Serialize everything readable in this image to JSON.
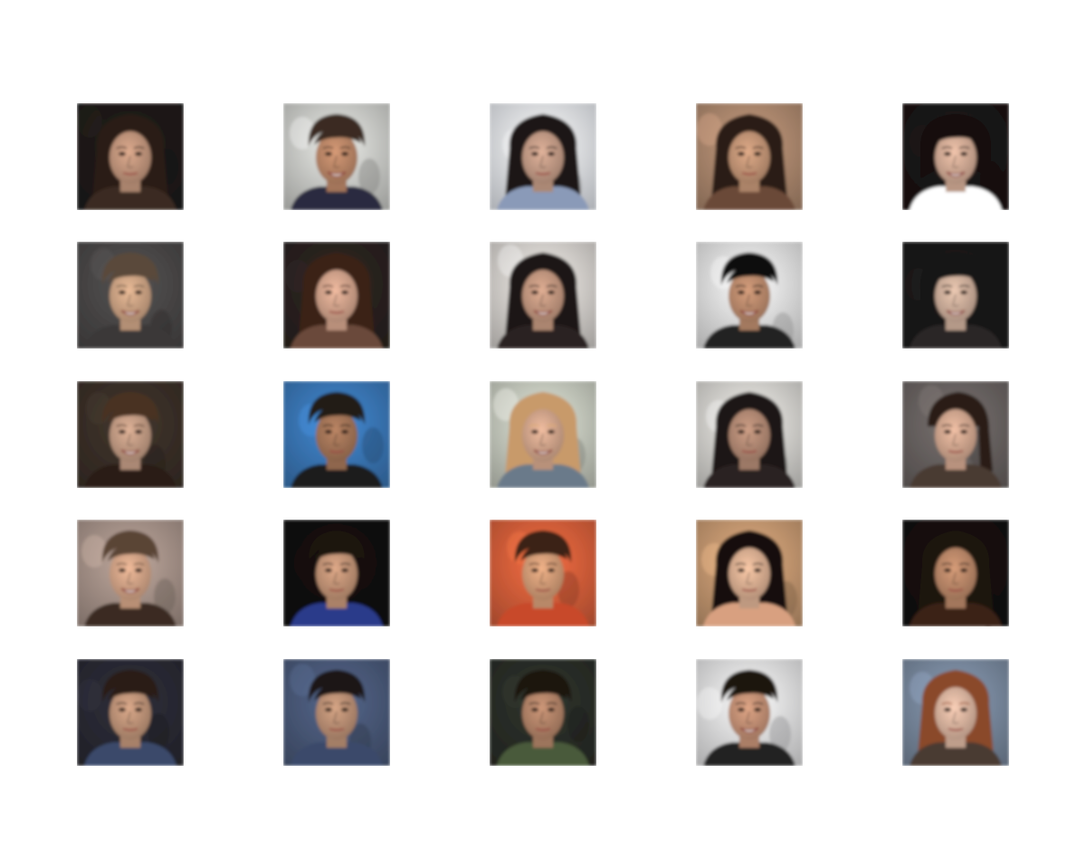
{
  "grid": {
    "rows": 5,
    "cols": 5,
    "tiles": [
      {
        "bg": "#1e1a18",
        "hair": "#2a1a12",
        "skin": "#c79a80",
        "shirt": "#3a2a22",
        "hairStyle": "long",
        "smile": false
      },
      {
        "bg": "#cfd0cc",
        "hair": "#3b2a20",
        "skin": "#c08a6a",
        "shirt": "#2a2a40",
        "hairStyle": "short",
        "smile": true
      },
      {
        "bg": "#e8ecf2",
        "hair": "#1c1512",
        "skin": "#c9a08a",
        "shirt": "#8a9ab8",
        "hairStyle": "long",
        "smile": false
      },
      {
        "bg": "#b08a70",
        "hair": "#2a1a12",
        "skin": "#c99a7a",
        "shirt": "#6a4a38",
        "hairStyle": "long",
        "smile": false
      },
      {
        "bg": "#1a1414",
        "hair": "#120c0c",
        "skin": "#d8b09a",
        "shirt": "#ffffff",
        "hairStyle": "bob",
        "smile": true
      },
      {
        "bg": "#4a4848",
        "hair": "#5a4a3a",
        "skin": "#d2a888",
        "shirt": "#3a3838",
        "hairStyle": "short",
        "smile": true
      },
      {
        "bg": "#2a2220",
        "hair": "#3a2218",
        "skin": "#d8a890",
        "shirt": "#6a4a3a",
        "hairStyle": "long",
        "smile": false
      },
      {
        "bg": "#d8d4d0",
        "hair": "#1a1412",
        "skin": "#c99c84",
        "shirt": "#2a2220",
        "hairStyle": "long",
        "smile": true
      },
      {
        "bg": "#e6e6e6",
        "hair": "#0e0a0a",
        "skin": "#c08e70",
        "shirt": "#222222",
        "hairStyle": "short",
        "smile": true
      },
      {
        "bg": "#1a1818",
        "hair": "#151212",
        "skin": "#d4b4a0",
        "shirt": "#2a2626",
        "hairStyle": "bob",
        "smile": true
      },
      {
        "bg": "#3a3028",
        "hair": "#4a3224",
        "skin": "#c8a088",
        "shirt": "#2a1a18",
        "hairStyle": "short",
        "smile": true
      },
      {
        "bg": "#3a78b8",
        "hair": "#221a14",
        "skin": "#a8785a",
        "shirt": "#1a1a1a",
        "hairStyle": "short",
        "smile": false
      },
      {
        "bg": "#c8ccc0",
        "hair": "#c89a6a",
        "skin": "#d8aa90",
        "shirt": "#6a7a8a",
        "hairStyle": "long",
        "smile": true
      },
      {
        "bg": "#d8d6d2",
        "hair": "#1a1412",
        "skin": "#b88e78",
        "shirt": "#2a2220",
        "hairStyle": "long",
        "smile": false
      },
      {
        "bg": "#6a6462",
        "hair": "#2a1e18",
        "skin": "#d8ac94",
        "shirt": "#4a3a32",
        "hairStyle": "bun",
        "smile": false
      },
      {
        "bg": "#a8948a",
        "hair": "#5a4434",
        "skin": "#d8a88a",
        "shirt": "#3a2a22",
        "hairStyle": "short",
        "smile": true
      },
      {
        "bg": "#121010",
        "hair": "#1a1210",
        "skin": "#c8987a",
        "shirt": "#2a3a8a",
        "hairStyle": "short",
        "smile": false
      },
      {
        "bg": "#d8603a",
        "hair": "#3a2418",
        "skin": "#d8a07a",
        "shirt": "#c84a2a",
        "hairStyle": "short",
        "smile": false
      },
      {
        "bg": "#c89a72",
        "hair": "#141010",
        "skin": "#e0b496",
        "shirt": "#d8a080",
        "hairStyle": "long",
        "smile": false
      },
      {
        "bg": "#141010",
        "hair": "#1e1410",
        "skin": "#c08c6c",
        "shirt": "#3a2018",
        "hairStyle": "long",
        "smile": false
      },
      {
        "bg": "#2a2a34",
        "hair": "#2a1e18",
        "skin": "#c4987c",
        "shirt": "#3a4a6a",
        "hairStyle": "short",
        "smile": false
      },
      {
        "bg": "#4a5a7a",
        "hair": "#1e1612",
        "skin": "#c09478",
        "shirt": "#3a4a6a",
        "hairStyle": "short",
        "smile": false
      },
      {
        "bg": "#2a2e28",
        "hair": "#1a1410",
        "skin": "#b8886c",
        "shirt": "#4a5a3a",
        "hairStyle": "short",
        "smile": false
      },
      {
        "bg": "#e6e6e8",
        "hair": "#1e1410",
        "skin": "#c89478",
        "shirt": "#222222",
        "hairStyle": "short",
        "smile": true
      },
      {
        "bg": "#7a8aa0",
        "hair": "#8a4a2a",
        "skin": "#e0baa4",
        "shirt": "#4a3a30",
        "hairStyle": "long",
        "smile": false
      }
    ]
  }
}
